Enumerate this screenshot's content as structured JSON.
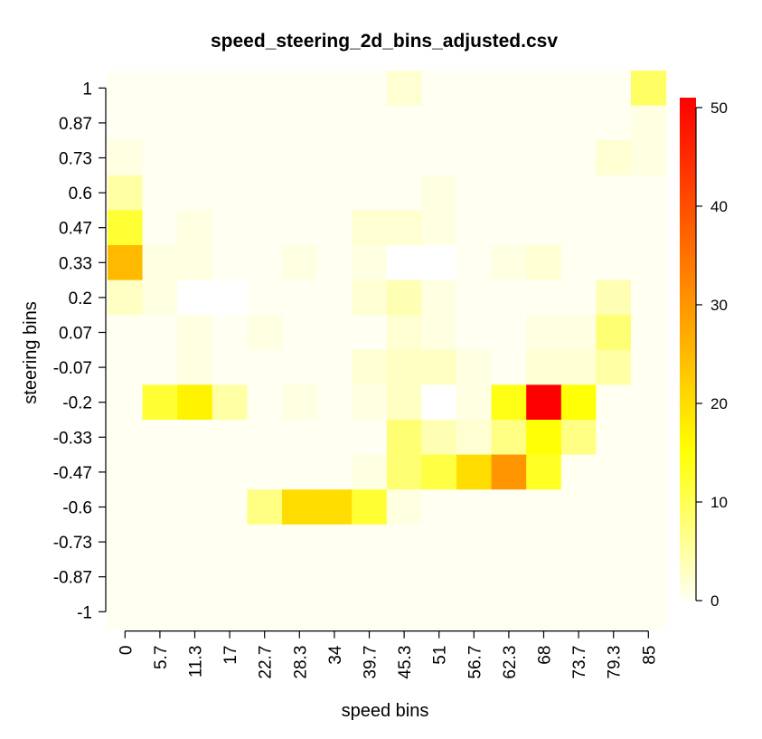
{
  "chart_data": {
    "type": "heatmap",
    "title": "speed_steering_2d_bins_adjusted.csv",
    "xlabel": "speed bins",
    "ylabel": "steering bins",
    "x_ticks": [
      "0",
      "5.7",
      "11.3",
      "17",
      "22.7",
      "28.3",
      "34",
      "39.7",
      "45.3",
      "51",
      "56.7",
      "62.3",
      "68",
      "73.7",
      "79.3",
      "85"
    ],
    "y_ticks": [
      "1",
      "0.87",
      "0.73",
      "0.6",
      "0.47",
      "0.33",
      "0.2",
      "0.07",
      "-0.07",
      "-0.2",
      "-0.33",
      "-0.47",
      "-0.6",
      "-0.73",
      "-0.87",
      "-1"
    ],
    "colorbar": {
      "min": 0,
      "max": 51,
      "ticks": [
        0,
        10,
        20,
        30,
        40,
        50
      ]
    },
    "colors": {
      "low": "#FFFFF2",
      "mid": "#FFFF00",
      "high": "#FF0000"
    },
    "values": [
      [
        0,
        0,
        0,
        0,
        0,
        0,
        0,
        0,
        2,
        0,
        0,
        0,
        0,
        0,
        0,
        9
      ],
      [
        0,
        0,
        0,
        0,
        0,
        0,
        0,
        0,
        0,
        0,
        0,
        0,
        0,
        0,
        0,
        1
      ],
      [
        1,
        0,
        0,
        0,
        0,
        0,
        0,
        0,
        0,
        0,
        0,
        0,
        0,
        0,
        2,
        1
      ],
      [
        5,
        0,
        0,
        0,
        0,
        0,
        0,
        0,
        0,
        1,
        0,
        0,
        0,
        0,
        0,
        0
      ],
      [
        12,
        0,
        1,
        0,
        0,
        0,
        0,
        2,
        2,
        1,
        0,
        0,
        0,
        0,
        0,
        0
      ],
      [
        25,
        1,
        1,
        0,
        0,
        1,
        0,
        1,
        -1,
        -1,
        0,
        1,
        2,
        0,
        0,
        0
      ],
      [
        3,
        1,
        -1,
        -1,
        0,
        0,
        0,
        2,
        4,
        1,
        0,
        0,
        0,
        0,
        4,
        0
      ],
      [
        0,
        0,
        1,
        0,
        1,
        0,
        0,
        0,
        2,
        1,
        0,
        0,
        1,
        1,
        8,
        0
      ],
      [
        0,
        0,
        1,
        0,
        0,
        0,
        0,
        2,
        3,
        3,
        1,
        0,
        2,
        2,
        5,
        0
      ],
      [
        0,
        12,
        17,
        5,
        0,
        1,
        0,
        1,
        3,
        -1,
        1,
        14,
        51,
        15,
        0,
        0
      ],
      [
        0,
        0,
        0,
        0,
        0,
        0,
        0,
        0,
        8,
        4,
        2,
        7,
        15,
        7,
        0,
        0
      ],
      [
        0,
        0,
        0,
        0,
        0,
        0,
        0,
        1,
        8,
        11,
        20,
        30,
        13,
        0,
        0,
        0
      ],
      [
        0,
        0,
        0,
        0,
        7,
        20,
        20,
        12,
        1,
        0,
        0,
        0,
        0,
        0,
        0,
        0
      ],
      [
        0,
        0,
        0,
        0,
        0,
        0,
        0,
        0,
        0,
        0,
        0,
        0,
        0,
        0,
        0,
        0
      ],
      [
        0,
        0,
        0,
        0,
        0,
        0,
        0,
        0,
        0,
        0,
        0,
        0,
        0,
        0,
        0,
        0
      ],
      [
        0,
        0,
        0,
        0,
        0,
        0,
        0,
        0,
        0,
        0,
        0,
        0,
        0,
        0,
        0,
        0
      ]
    ]
  }
}
